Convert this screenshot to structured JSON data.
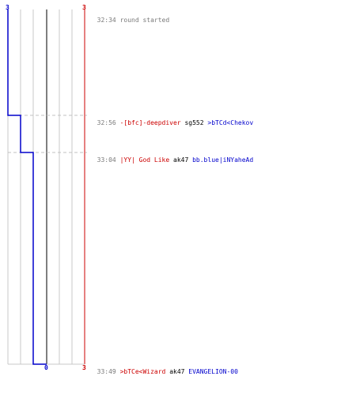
{
  "scoreboard": {
    "left_score_top": "3",
    "right_score_top": "3",
    "center_score_bottom": "0",
    "right_score_bottom": "3"
  },
  "events": [
    {
      "time": "32:34",
      "text": "round started",
      "type": "status"
    },
    {
      "time": "32:56",
      "killer": "-[bfc]-deepdiver",
      "weapon": "sg552",
      "victim": ">bTCd<Chekov"
    },
    {
      "time": "33:04",
      "killer": "|YY| God Like",
      "weapon": "ak47",
      "victim": "bb.blue|iNYaheAd"
    },
    {
      "time": "33:49",
      "killer": ">bTCe<Wizard",
      "weapon": "ak47",
      "victim": "EVANGELION-00"
    }
  ],
  "colors": {
    "team_red": "#cc0000",
    "team_blue": "#0000cc",
    "grid": "#c8c8c8",
    "center_line": "#555555",
    "dashed": "#c0c0c0",
    "time_text": "#7a7a7a"
  }
}
